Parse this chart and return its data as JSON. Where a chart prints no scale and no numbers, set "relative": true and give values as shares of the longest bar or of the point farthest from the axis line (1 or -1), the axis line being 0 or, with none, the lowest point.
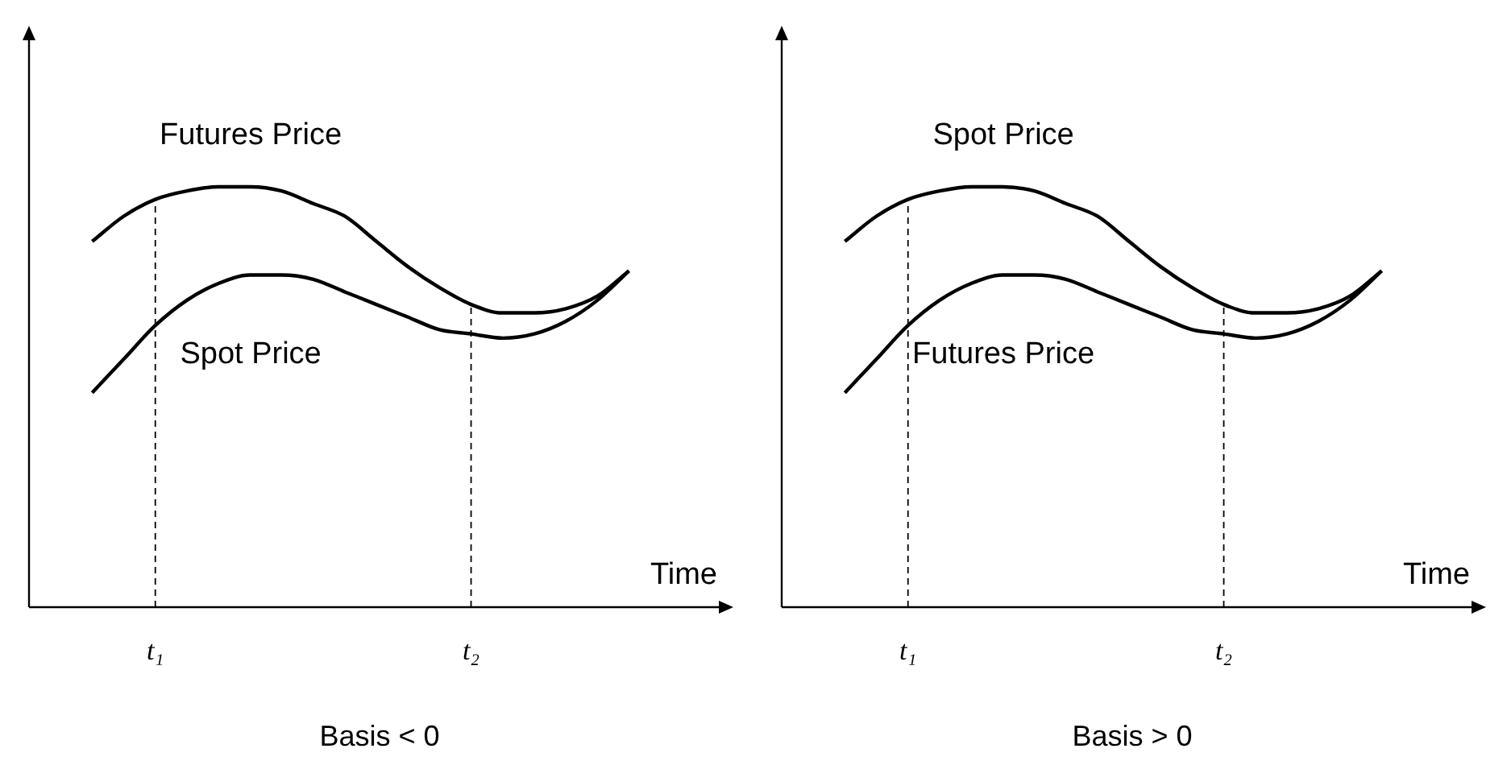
{
  "chart_data": [
    {
      "type": "line",
      "title": "Basis < 0",
      "xlabel": "Time",
      "relative": true,
      "grid": false,
      "marker": "none",
      "tick_labels": "x",
      "categories": [
        null,
        null,
        null,
        null,
        "t₁",
        null,
        null,
        null,
        null,
        null,
        null,
        null,
        null,
        null,
        "t₂",
        null,
        null,
        null,
        null,
        null,
        null,
        null,
        null
      ],
      "series": [
        {
          "name": "Futures Price",
          "color": "#000000",
          "values": [
            null,
            null,
            0.87,
            0.93,
            0.97,
            0.99,
            1.0,
            1.0,
            0.99,
            0.96,
            0.93,
            0.87,
            0.81,
            0.76,
            0.72,
            0.7,
            0.7,
            0.71,
            0.74,
            0.8,
            null,
            null,
            null
          ]
        },
        {
          "name": "Spot Price",
          "color": "#000000",
          "values": [
            null,
            null,
            0.51,
            0.59,
            0.67,
            0.73,
            0.77,
            0.79,
            0.79,
            0.78,
            0.75,
            0.72,
            0.69,
            0.66,
            0.65,
            0.64,
            0.65,
            0.68,
            0.73,
            0.8,
            null,
            null,
            null
          ]
        }
      ],
      "ref_lines": [
        {
          "axis": "x",
          "value": "t₁",
          "line_style": "dashed"
        },
        {
          "axis": "x",
          "value": "t₂",
          "line_style": "dashed"
        }
      ]
    },
    {
      "type": "line",
      "title": "Basis > 0",
      "xlabel": "Time",
      "relative": true,
      "grid": false,
      "marker": "none",
      "tick_labels": "x",
      "categories": [
        null,
        null,
        null,
        null,
        "t₁",
        null,
        null,
        null,
        null,
        null,
        null,
        null,
        null,
        null,
        "t₂",
        null,
        null,
        null,
        null,
        null,
        null,
        null,
        null
      ],
      "series": [
        {
          "name": "Spot Price",
          "color": "#000000",
          "values": [
            null,
            null,
            0.87,
            0.93,
            0.97,
            0.99,
            1.0,
            1.0,
            0.99,
            0.96,
            0.93,
            0.87,
            0.81,
            0.76,
            0.72,
            0.7,
            0.7,
            0.71,
            0.74,
            0.8,
            null,
            null,
            null
          ]
        },
        {
          "name": "Futures Price",
          "color": "#000000",
          "values": [
            null,
            null,
            0.51,
            0.59,
            0.67,
            0.73,
            0.77,
            0.79,
            0.79,
            0.78,
            0.75,
            0.72,
            0.69,
            0.66,
            0.65,
            0.64,
            0.65,
            0.68,
            0.73,
            0.8,
            null,
            null,
            null
          ]
        }
      ],
      "ref_lines": [
        {
          "axis": "x",
          "value": "t₁",
          "line_style": "dashed"
        },
        {
          "axis": "x",
          "value": "t₂",
          "line_style": "dashed"
        }
      ]
    }
  ]
}
